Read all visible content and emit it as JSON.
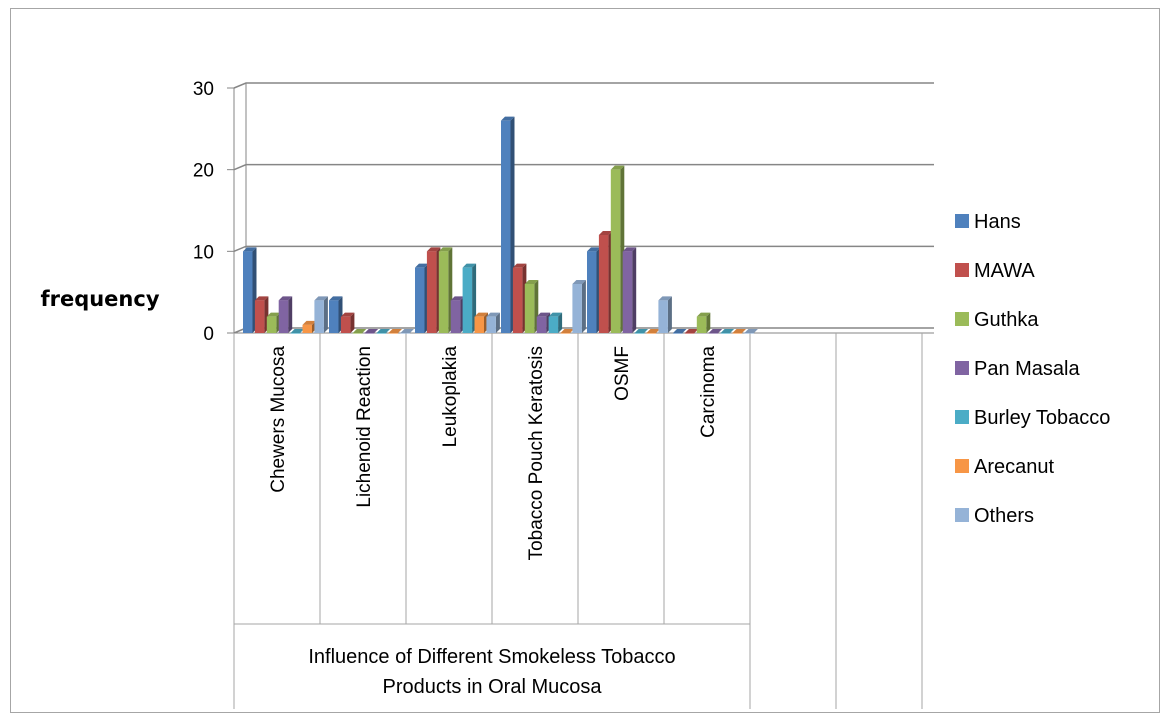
{
  "chart_data": {
    "type": "bar",
    "ylabel": "frequency",
    "xlabel_group": "Influence of Different Smokeless Tobacco Products in Oral Mucosa",
    "xlabel_group_lines": [
      "Influence of Different Smokeless Tobacco",
      "Products in Oral Mucosa"
    ],
    "ylim": [
      0,
      30
    ],
    "yticks": [
      0,
      10,
      20,
      30
    ],
    "grid": true,
    "legend_position": "right",
    "categories": [
      "Chewers Mucosa",
      "Lichenoid Reaction",
      "Leukoplakia",
      "Tobacco Pouch Keratosis",
      "OSMF",
      "Carcinoma",
      "",
      ""
    ],
    "series": [
      {
        "name": "Hans",
        "color": "#4f81bd",
        "values": [
          10,
          4,
          8,
          26,
          10,
          0,
          null,
          null
        ]
      },
      {
        "name": "MAWA",
        "color": "#c0504d",
        "values": [
          4,
          2,
          10,
          8,
          12,
          0,
          null,
          null
        ]
      },
      {
        "name": "Guthka",
        "color": "#9bbb59",
        "values": [
          2,
          0,
          10,
          6,
          20,
          2,
          null,
          null
        ]
      },
      {
        "name": "Pan Masala",
        "color": "#8064a2",
        "values": [
          4,
          0,
          4,
          2,
          10,
          0,
          null,
          null
        ]
      },
      {
        "name": "Burley Tobacco",
        "color": "#4bacc6",
        "values": [
          0,
          0,
          8,
          2,
          0,
          0,
          null,
          null
        ]
      },
      {
        "name": "Arecanut",
        "color": "#f79646",
        "values": [
          1,
          0,
          2,
          0,
          0,
          0,
          null,
          null
        ]
      },
      {
        "name": "Others",
        "color": "#95b3d7",
        "values": [
          4,
          0,
          2,
          6,
          4,
          0,
          null,
          null
        ]
      }
    ]
  }
}
